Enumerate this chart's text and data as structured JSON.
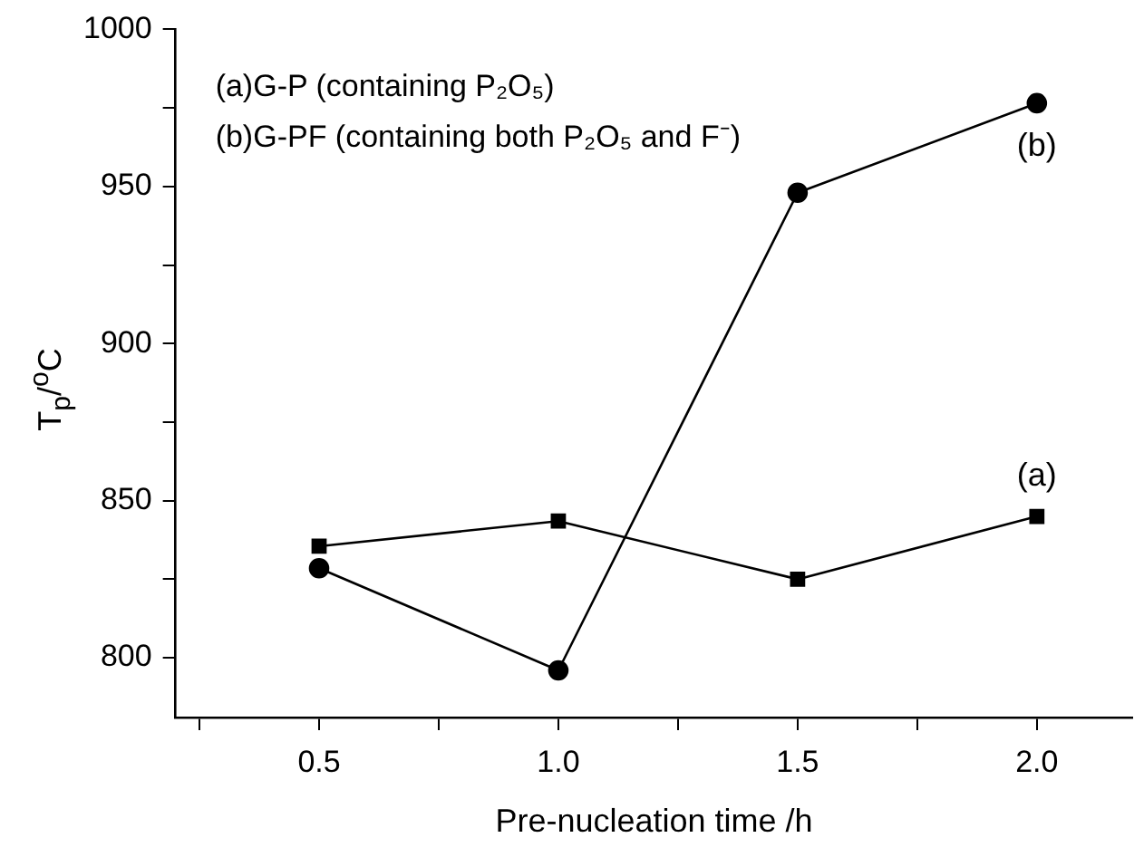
{
  "chart_data": {
    "type": "line",
    "xlabel": "Pre-nucleation time /h",
    "ylabel": "T$_{p}$/$^{o}$C",
    "x": [
      0.5,
      1.0,
      1.5,
      2.0
    ],
    "series": [
      {
        "name": "(a)",
        "color": "#000000",
        "marker": "square",
        "values": [
          835.5,
          843.5,
          825,
          845
        ]
      },
      {
        "name": "(b)",
        "color": "#000000",
        "marker": "circle",
        "values": [
          828.5,
          796,
          948,
          976.5
        ]
      }
    ],
    "xlim": [
      0.2,
      2.2
    ],
    "xticks": [
      {
        "value": 0.25,
        "label": null
      },
      0.5,
      {
        "value": 0.75,
        "label": null
      },
      {
        "value": 1,
        "label": "1.0"
      },
      {
        "value": 1.25,
        "label": null
      },
      1.5,
      {
        "value": 1.75,
        "label": null
      },
      {
        "value": 2,
        "label": "2.0"
      }
    ],
    "ylim": [
      781,
      1000
    ],
    "yticks": [
      800,
      {
        "value": 825,
        "label": null
      },
      850,
      {
        "value": 875,
        "label": null
      },
      900,
      {
        "value": 925,
        "label": null
      },
      950,
      {
        "value": 975,
        "label": null
      },
      1000
    ],
    "annotations": [
      "(a)G-P (containing P₂O₅)",
      "(b)G-PF (containing both P₂O₅ and F⁻)"
    ],
    "grid": false,
    "legend": false,
    "line_style": "solid"
  }
}
